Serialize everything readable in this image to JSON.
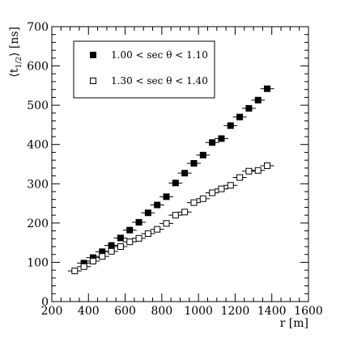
{
  "chart_data": {
    "type": "scatter",
    "xlabel": "r [m]",
    "ylabel_main": "⟨t",
    "ylabel_sub": "1/2",
    "ylabel_tail": "⟩ [ns]",
    "xlim": [
      200,
      1600
    ],
    "ylim": [
      0,
      700
    ],
    "x_ticks": [
      200,
      400,
      600,
      800,
      1000,
      1200,
      1400,
      1600
    ],
    "y_ticks": [
      0,
      100,
      200,
      300,
      400,
      500,
      600,
      700
    ],
    "x_tick_labels": [
      "200",
      "400",
      "600",
      "800",
      "1000",
      "1200",
      "1400",
      "1600"
    ],
    "y_tick_labels": [
      "0",
      "100",
      "200",
      "300",
      "400",
      "500",
      "600",
      "700"
    ],
    "legend_position": "top-left",
    "series": [
      {
        "name": "1.00 < sec θ < 1.10",
        "marker": "filled-square",
        "x": [
          375,
          425,
          475,
          525,
          575,
          625,
          675,
          725,
          775,
          825,
          875,
          925,
          975,
          1025,
          1075,
          1125,
          1175,
          1225,
          1275,
          1325,
          1375
        ],
        "y": [
          98,
          112,
          127,
          143,
          162,
          182,
          202,
          226,
          246,
          267,
          302,
          327,
          352,
          373,
          405,
          415,
          448,
          470,
          492,
          513,
          542
        ]
      },
      {
        "name": "1.30 < sec θ < 1.40",
        "marker": "open-square",
        "x": [
          325,
          375,
          425,
          475,
          525,
          575,
          625,
          675,
          725,
          775,
          825,
          875,
          925,
          975,
          1025,
          1075,
          1125,
          1175,
          1225,
          1275,
          1325,
          1375
        ],
        "y": [
          78,
          89,
          103,
          115,
          128,
          140,
          152,
          161,
          173,
          184,
          199,
          220,
          228,
          252,
          262,
          277,
          287,
          296,
          316,
          332,
          334,
          346
        ]
      }
    ]
  }
}
